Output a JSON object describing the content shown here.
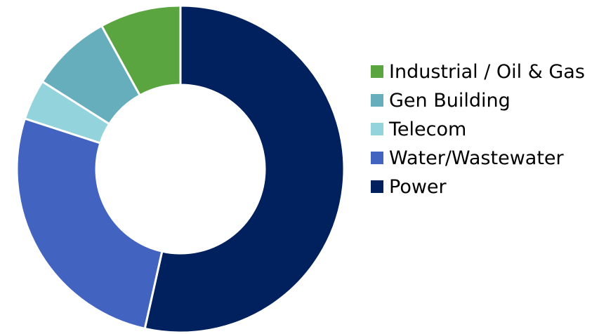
{
  "chart_data": {
    "type": "donut",
    "categories": [
      "Industrial / Oil & Gas",
      "Gen Building",
      "Telecom",
      "Water/Wastewater",
      "Power"
    ],
    "values": [
      8,
      8,
      4,
      26.5,
      53.5
    ],
    "colors": [
      "#5aa540",
      "#66aebb",
      "#93d4dc",
      "#4263c0",
      "#00215e"
    ],
    "legend": "right"
  }
}
